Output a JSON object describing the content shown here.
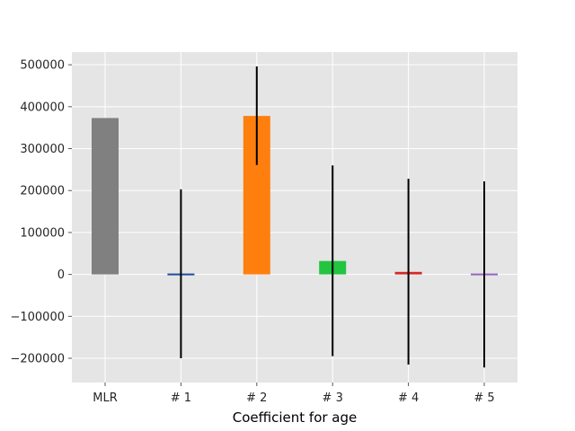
{
  "chart_data": {
    "type": "bar",
    "title": "",
    "xlabel": "Coefficient for age",
    "ylabel": "",
    "categories": [
      "MLR",
      "# 1",
      "# 2",
      "# 3",
      "# 4",
      "# 5"
    ],
    "values": [
      373000,
      2000,
      378000,
      32000,
      6000,
      0
    ],
    "error_bars": [
      null,
      {
        "low": -200000,
        "high": 203000
      },
      {
        "low": 261000,
        "high": 496000
      },
      {
        "low": -195000,
        "high": 260000
      },
      {
        "low": -215000,
        "high": 228000
      },
      {
        "low": -222000,
        "high": 222000
      }
    ],
    "bar_colors": [
      "#808080",
      "#1f4e9f",
      "#ff7f0e",
      "#22c440",
      "#d62728",
      "#9467bd"
    ],
    "ylim": [
      -260000,
      560000
    ],
    "yticks": [
      500000,
      400000,
      300000,
      200000,
      100000,
      0,
      -100000,
      -200000
    ],
    "ytick_labels": [
      "500000",
      "400000",
      "300000",
      "200000",
      "100000",
      "0",
      "−100000",
      "−200000"
    ],
    "grid": true,
    "background_color": "#e5e5e5",
    "grid_color": "#ffffff"
  }
}
